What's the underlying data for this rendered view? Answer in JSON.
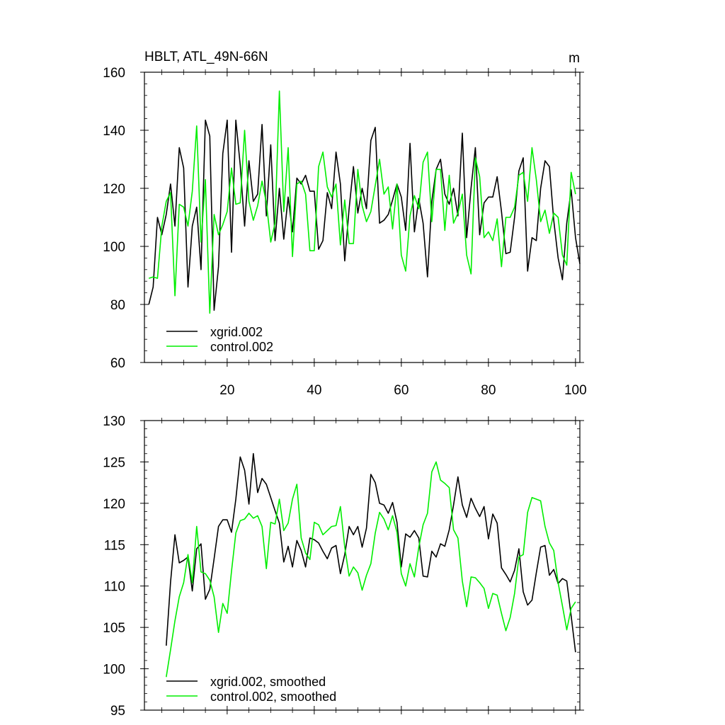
{
  "chart_data": [
    {
      "type": "line",
      "title": "HBLT, ATL_49N-66N",
      "units": "m",
      "xlim": [
        1,
        101
      ],
      "ylim": [
        60,
        160
      ],
      "xticks": [
        20,
        40,
        60,
        80,
        100
      ],
      "yticks": [
        60,
        80,
        100,
        120,
        140,
        160
      ],
      "legend_position": "bottom-left",
      "series": [
        {
          "name": "xgrid.002",
          "color": "#000000",
          "x_start": 2,
          "values": [
            80,
            86,
            110,
            104,
            111,
            121.5,
            107,
            134,
            127,
            86,
            107,
            113.5,
            92,
            143.5,
            138,
            78,
            93,
            132,
            143.5,
            98,
            143.5,
            128,
            107,
            129.5,
            115.5,
            118,
            142,
            110.5,
            135,
            102,
            120,
            102.5,
            117,
            105,
            123.5,
            121.5,
            124.5,
            119,
            119,
            99,
            102,
            118.5,
            113,
            132.5,
            121.5,
            95,
            113,
            127.5,
            111.5,
            120,
            113,
            136.5,
            141,
            108,
            109,
            111,
            116,
            121.5,
            117,
            105.5,
            135.5,
            105,
            116.5,
            108,
            89.5,
            115.5,
            126.5,
            130,
            118,
            114.5,
            120,
            110.5,
            139,
            103,
            120,
            134,
            104,
            115,
            117,
            117,
            124,
            112,
            97.5,
            98,
            110,
            126,
            130.5,
            91.5,
            103,
            102,
            120,
            129.5,
            127.5,
            109,
            96,
            88.5,
            108,
            119.5,
            103,
            94
          ]
        },
        {
          "name": "control.002",
          "color": "#00ee00",
          "x_start": 2,
          "values": [
            89,
            89.5,
            89,
            107,
            115.5,
            118.5,
            83,
            114.5,
            113.5,
            107,
            119,
            141.5,
            101.5,
            123,
            77,
            111,
            104,
            107.5,
            112,
            127,
            114.5,
            115,
            140,
            115.5,
            109,
            114,
            122.5,
            115,
            101.5,
            108,
            153.5,
            112,
            134,
            96.5,
            121.5,
            122.5,
            118,
            98.5,
            98.5,
            127.5,
            132.5,
            120.5,
            117,
            121.5,
            100.5,
            116,
            101,
            101,
            126.5,
            114,
            108.5,
            112,
            121,
            130,
            118,
            120.5,
            106,
            121.5,
            97,
            91.5,
            110.5,
            117.5,
            113,
            129,
            132.5,
            108.5,
            126.5,
            126.5,
            105.5,
            124.5,
            108,
            111.5,
            118,
            97,
            90.5,
            130.5,
            124,
            103,
            105,
            102,
            109.5,
            93,
            110,
            110,
            113.5,
            124.5,
            125.5,
            115.5,
            134,
            123,
            108.5,
            112.5,
            104.5,
            111.5,
            110,
            97,
            93.5,
            125.5,
            118
          ]
        }
      ]
    },
    {
      "type": "line",
      "title": "",
      "xlim": [
        1,
        101
      ],
      "ylim": [
        95,
        130
      ],
      "xticks": [
        20,
        40,
        60,
        80,
        100
      ],
      "yticks": [
        95,
        100,
        105,
        110,
        115,
        120,
        125,
        130
      ],
      "legend_position": "bottom-left",
      "series": [
        {
          "name": "xgrid.002, smoothed",
          "color": "#000000",
          "x_start": 6,
          "values": [
            102.8,
            110.5,
            116.2,
            112.8,
            113.1,
            113.5,
            109.4,
            114.5,
            115.1,
            108.4,
            109.6,
            113.3,
            117.2,
            118,
            118,
            116.5,
            120.5,
            125.6,
            124,
            119.9,
            126,
            121.3,
            123,
            122.3,
            120.7,
            119.1,
            117.6,
            112.9,
            114.8,
            112.3,
            115.5,
            114.3,
            112.3,
            115.8,
            115.6,
            115.2,
            114.2,
            113.3,
            114.6,
            114.9,
            111.5,
            113.8,
            117.2,
            116.2,
            117.2,
            114.7,
            117,
            123.5,
            122.5,
            120,
            119.8,
            118.8,
            120.1,
            117.7,
            112.3,
            116.3,
            115.9,
            116.7,
            115.8,
            111.2,
            111.1,
            114.2,
            113.5,
            115.1,
            114.8,
            116.8,
            119.8,
            123.2,
            119.8,
            118.3,
            120.6,
            119.4,
            118.4,
            119.6,
            115.7,
            118.7,
            117.6,
            112.2,
            111.4,
            110.5,
            111.9,
            114.5,
            109.3,
            107.7,
            108.3,
            111.6,
            114.7,
            114.9,
            111.3,
            112,
            110.3,
            110.9,
            110.6,
            106.4,
            102
          ]
        },
        {
          "name": "control.002, smoothed",
          "color": "#00ee00",
          "x_start": 6,
          "values": [
            99,
            102.3,
            105.8,
            108.7,
            110.4,
            113.8,
            110.4,
            117.2,
            111.7,
            111.5,
            110.7,
            108.7,
            104.4,
            107.9,
            106.7,
            111.8,
            116.4,
            117.9,
            118.1,
            118.8,
            118.2,
            118.5,
            117.2,
            112.1,
            117.7,
            117.5,
            120.5,
            116.7,
            117.6,
            120.5,
            122.3,
            115.8,
            114,
            113.2,
            117.7,
            117.4,
            116.2,
            116.7,
            117.2,
            117.3,
            119.6,
            114.7,
            111.2,
            112.3,
            111.6,
            109.5,
            111.3,
            112.7,
            116.4,
            118.9,
            118.1,
            116.8,
            118.5,
            116.5,
            111.5,
            110,
            112.7,
            111.1,
            114.7,
            117.4,
            118.8,
            123.8,
            125,
            122.8,
            122.4,
            121.9,
            116.8,
            115.8,
            110.6,
            107.5,
            111.1,
            111,
            110.4,
            109.7,
            107.3,
            109.1,
            108.9,
            106.7,
            104.6,
            106.2,
            109.1,
            113.5,
            113.8,
            118.9,
            120.7,
            120.5,
            120.3,
            117.2,
            115.2,
            114.3,
            110.4,
            107.6,
            104.7,
            107.3,
            108.1
          ]
        }
      ]
    }
  ]
}
